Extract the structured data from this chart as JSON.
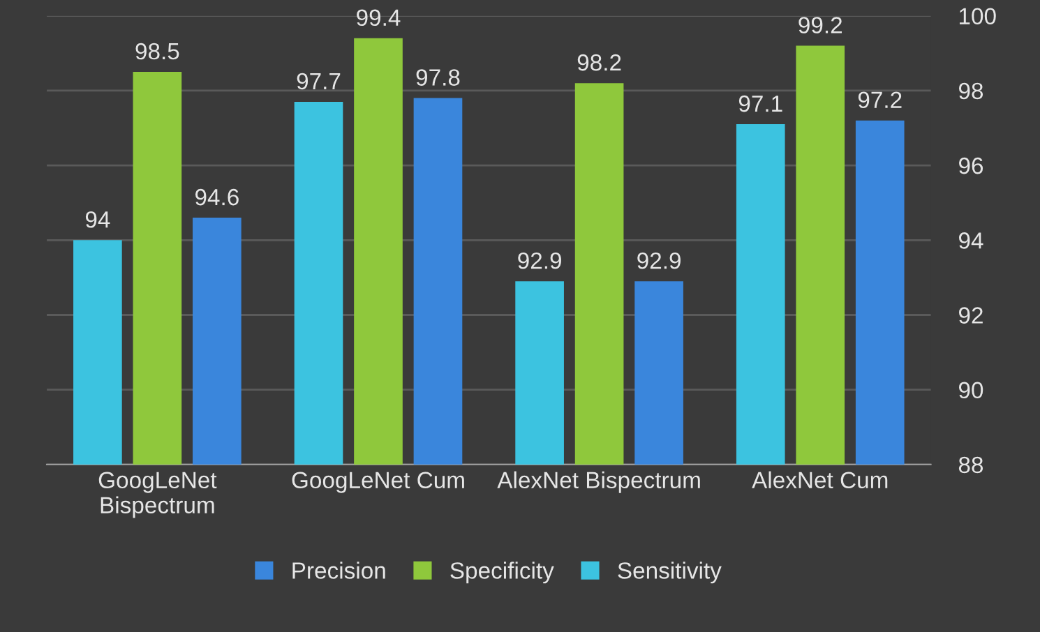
{
  "chart_data": {
    "type": "bar",
    "categories": [
      "GoogLeNet\nBispectrum",
      "GoogLeNet Cum",
      "AlexNet Bispectrum",
      "AlexNet Cum"
    ],
    "series": [
      {
        "name": "Sensitivity",
        "color": "#3cc3e0",
        "values": [
          94,
          97.7,
          92.9,
          97.1
        ]
      },
      {
        "name": "Specificity",
        "color": "#8fc83c",
        "values": [
          98.5,
          99.4,
          98.2,
          99.2
        ]
      },
      {
        "name": "Precision",
        "color": "#3a86dc",
        "values": [
          94.6,
          97.8,
          92.9,
          97.2
        ]
      }
    ],
    "ylim": [
      88,
      100
    ],
    "yticks": [
      88,
      90,
      92,
      94,
      96,
      98,
      100
    ],
    "grid": "y",
    "legend": "bottom",
    "data_labels": true
  }
}
